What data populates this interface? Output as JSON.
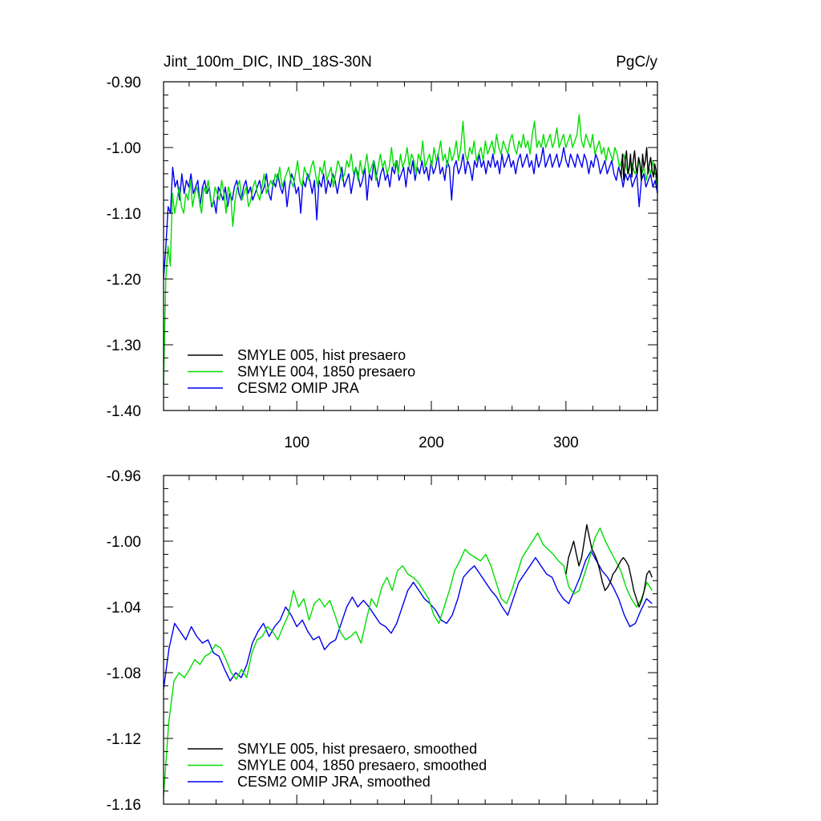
{
  "chart_data": [
    {
      "type": "line",
      "title": "Jint_100m_DIC, IND_18S-30N",
      "units": "PgC/y",
      "xlim": [
        1,
        368
      ],
      "ylim": [
        -1.4,
        -0.9
      ],
      "xticks": [
        100,
        200,
        300
      ],
      "yticks": [
        -1.4,
        -1.3,
        -1.2,
        -1.1,
        -1.0,
        -0.9
      ],
      "ytick_labels": [
        "-1.40",
        "-1.30",
        "-1.20",
        "-1.10",
        "-1.00",
        "-0.90"
      ],
      "xtick_labels": [
        "100",
        "200",
        "300"
      ],
      "series": [
        {
          "name": "SMYLE 005, hist presaero",
          "color": "#000000",
          "x_range": [
            340,
            368
          ],
          "values": [
            -1.035,
            -1.045,
            -1.01,
            -1.05,
            -1.02,
            -1.005,
            -1.04,
            -1.03,
            -1.01,
            -1.045,
            -1.02,
            -1.005,
            -1.03,
            -1.04,
            -1.015,
            -1.025,
            -1.05,
            -1.01,
            -1.03,
            -1.02,
            -1.0,
            -1.04,
            -1.025,
            -1.015,
            -1.035,
            -1.045,
            -1.025,
            -1.035,
            -1.06
          ]
        },
        {
          "name": "SMYLE 004, 1850 presaero",
          "color": "#00dd00",
          "x_range": [
            1,
            368
          ],
          "values": [
            -1.36,
            -1.2,
            -1.15,
            -1.18,
            -1.07,
            -1.1,
            -1.08,
            -1.06,
            -1.09,
            -1.1,
            -1.07,
            -1.08,
            -1.05,
            -1.09,
            -1.07,
            -1.06,
            -1.08,
            -1.1,
            -1.06,
            -1.07,
            -1.05,
            -1.08,
            -1.09,
            -1.06,
            -1.07,
            -1.08,
            -1.05,
            -1.07,
            -1.1,
            -1.06,
            -1.07,
            -1.12,
            -1.08,
            -1.06,
            -1.05,
            -1.08,
            -1.07,
            -1.06,
            -1.09,
            -1.08,
            -1.06,
            -1.05,
            -1.07,
            -1.08,
            -1.06,
            -1.04,
            -1.07,
            -1.06,
            -1.05,
            -1.06,
            -1.04,
            -1.05,
            -1.03,
            -1.06,
            -1.05,
            -1.04,
            -1.03,
            -1.05,
            -1.06,
            -1.04,
            -1.02,
            -1.05,
            -1.06,
            -1.03,
            -1.04,
            -1.05,
            -1.03,
            -1.02,
            -1.04,
            -1.06,
            -1.03,
            -1.04,
            -1.02,
            -1.05,
            -1.04,
            -1.03,
            -1.06,
            -1.04,
            -1.02,
            -1.03,
            -1.05,
            -1.04,
            -1.02,
            -1.03,
            -1.01,
            -1.04,
            -1.03,
            -1.05,
            -1.02,
            -1.04,
            -1.03,
            -1.01,
            -1.04,
            -1.03,
            -1.02,
            -1.05,
            -1.03,
            -1.01,
            -1.03,
            -1.02,
            -1.04,
            -1.03,
            -1.0,
            -1.03,
            -1.02,
            -1.04,
            -1.01,
            -1.03,
            -1.02,
            -1.0,
            -1.03,
            -1.01,
            -1.02,
            -1.04,
            -1.01,
            -1.02,
            -0.99,
            -1.03,
            -1.02,
            -1.01,
            -1.03,
            -1.0,
            -1.02,
            -1.01,
            -0.99,
            -1.02,
            -1.01,
            -1.03,
            -1.0,
            -1.02,
            -1.01,
            -0.99,
            -1.02,
            -1.0,
            -0.96,
            -1.01,
            -1.02,
            -1.0,
            -1.01,
            -0.99,
            -1.02,
            -1.01,
            -1.0,
            -1.02,
            -0.99,
            -1.01,
            -1.0,
            -0.99,
            -1.01,
            -0.98,
            -1.0,
            -1.01,
            -0.99,
            -1.0,
            -1.01,
            -0.99,
            -0.98,
            -1.0,
            -1.01,
            -0.99,
            -1.0,
            -0.98,
            -1.0,
            -0.99,
            -1.01,
            -0.98,
            -0.96,
            -1.0,
            -0.99,
            -1.0,
            -0.98,
            -1.0,
            -0.99,
            -0.98,
            -1.0,
            -0.99,
            -0.97,
            -1.0,
            -0.99,
            -0.98,
            -1.0,
            -0.99,
            -0.98,
            -1.0,
            -0.99,
            -0.98,
            -0.95,
            -0.99,
            -1.0,
            -0.98,
            -0.99,
            -1.0,
            -0.98,
            -1.01,
            -1.0,
            -0.99,
            -1.01,
            -1.0,
            -1.02,
            -1.0,
            -1.01,
            -1.02,
            -1.0,
            -1.01,
            -1.03,
            -1.02,
            -1.01,
            -1.03,
            -1.04,
            -1.02,
            -1.03,
            -1.04,
            -1.03,
            -1.02,
            -1.04,
            -1.03,
            -1.05,
            -1.03,
            -1.04,
            -1.02,
            -1.04,
            -1.06
          ]
        },
        {
          "name": "CESM2 OMIP JRA",
          "color": "#0000ee",
          "x_range": [
            1,
            368
          ],
          "values": [
            -1.2,
            -1.15,
            -1.09,
            -1.1,
            -1.03,
            -1.06,
            -1.05,
            -1.08,
            -1.04,
            -1.07,
            -1.05,
            -1.06,
            -1.04,
            -1.07,
            -1.06,
            -1.05,
            -1.09,
            -1.06,
            -1.05,
            -1.07,
            -1.06,
            -1.09,
            -1.08,
            -1.1,
            -1.06,
            -1.07,
            -1.08,
            -1.06,
            -1.09,
            -1.07,
            -1.08,
            -1.06,
            -1.05,
            -1.07,
            -1.08,
            -1.06,
            -1.05,
            -1.07,
            -1.06,
            -1.08,
            -1.07,
            -1.06,
            -1.05,
            -1.07,
            -1.06,
            -1.04,
            -1.07,
            -1.08,
            -1.05,
            -1.06,
            -1.04,
            -1.06,
            -1.07,
            -1.05,
            -1.09,
            -1.06,
            -1.04,
            -1.05,
            -1.07,
            -1.06,
            -1.1,
            -1.05,
            -1.06,
            -1.04,
            -1.05,
            -1.07,
            -1.05,
            -1.11,
            -1.05,
            -1.06,
            -1.04,
            -1.07,
            -1.05,
            -1.06,
            -1.04,
            -1.05,
            -1.07,
            -1.05,
            -1.03,
            -1.06,
            -1.05,
            -1.04,
            -1.07,
            -1.05,
            -1.03,
            -1.04,
            -1.06,
            -1.05,
            -1.03,
            -1.08,
            -1.04,
            -1.05,
            -1.02,
            -1.04,
            -1.06,
            -1.04,
            -1.03,
            -1.05,
            -1.04,
            -1.06,
            -1.03,
            -1.04,
            -1.02,
            -1.05,
            -1.04,
            -1.03,
            -1.06,
            -1.03,
            -1.04,
            -1.02,
            -1.05,
            -1.03,
            -1.04,
            -1.02,
            -1.04,
            -1.03,
            -1.05,
            -1.02,
            -1.04,
            -1.03,
            -1.01,
            -1.04,
            -1.03,
            -1.05,
            -1.02,
            -1.03,
            -1.08,
            -1.03,
            -1.02,
            -1.04,
            -1.03,
            -1.01,
            -1.04,
            -1.02,
            -1.03,
            -1.05,
            -1.02,
            -1.03,
            -1.01,
            -1.03,
            -1.02,
            -1.04,
            -1.02,
            -1.03,
            -1.01,
            -1.03,
            -1.02,
            -1.04,
            -1.01,
            -1.03,
            -1.02,
            -1.01,
            -1.03,
            -1.02,
            -1.04,
            -1.02,
            -1.01,
            -1.03,
            -1.02,
            -1.01,
            -1.03,
            -1.02,
            -1.04,
            -1.01,
            -1.03,
            -1.02,
            -1.0,
            -1.03,
            -1.02,
            -1.01,
            -1.03,
            -1.02,
            -1.01,
            -1.03,
            -1.02,
            -1.0,
            -1.02,
            -1.03,
            -1.01,
            -1.02,
            -1.03,
            -1.01,
            -1.02,
            -1.03,
            -1.01,
            -1.02,
            -1.04,
            -1.02,
            -1.03,
            -1.01,
            -1.02,
            -1.04,
            -1.03,
            -1.02,
            -1.04,
            -1.03,
            -1.02,
            -1.04,
            -1.05,
            -1.03,
            -1.04,
            -1.06,
            -1.04,
            -1.05,
            -1.04,
            -1.06,
            -1.05,
            -1.04,
            -1.09,
            -1.05,
            -1.04,
            -1.06,
            -1.05,
            -1.04,
            -1.06,
            -1.05,
            -1.07
          ]
        }
      ],
      "legend": [
        "SMYLE 005, hist presaero",
        "SMYLE 004, 1850 presaero",
        "CESM2 OMIP JRA"
      ],
      "legend_position": "bottom-left"
    },
    {
      "type": "line",
      "title": "",
      "units": "",
      "xlim": [
        1,
        368
      ],
      "ylim": [
        -1.16,
        -0.96
      ],
      "xticks": [
        100,
        200,
        300
      ],
      "yticks": [
        -1.16,
        -1.12,
        -1.08,
        -1.04,
        -1.0,
        -0.96
      ],
      "ytick_labels": [
        "-1.16",
        "-1.12",
        "-1.08",
        "-1.04",
        "-1.00",
        "-0.96"
      ],
      "series": [
        {
          "name": "SMYLE 005, hist presaero, smoothed",
          "color": "#000000",
          "x_range": [
            300,
            364
          ],
          "values": [
            -1.02,
            -1.01,
            -1.005,
            -1.0,
            -1.008,
            -1.015,
            -1.01,
            -1.0,
            -0.99,
            -0.998,
            -1.005,
            -1.008,
            -1.012,
            -1.018,
            -1.025,
            -1.03,
            -1.028,
            -1.025,
            -1.02,
            -1.018,
            -1.015,
            -1.012,
            -1.01,
            -1.012,
            -1.015,
            -1.022,
            -1.03,
            -1.035,
            -1.04,
            -1.036,
            -1.03,
            -1.02,
            -1.018,
            -1.022
          ]
        },
        {
          "name": "SMYLE 004, 1850 presaero, smoothed",
          "color": "#00dd00",
          "x_range": [
            1,
            364
          ],
          "values": [
            -1.155,
            -1.11,
            -1.085,
            -1.08,
            -1.083,
            -1.078,
            -1.072,
            -1.075,
            -1.07,
            -1.068,
            -1.063,
            -1.065,
            -1.072,
            -1.08,
            -1.084,
            -1.078,
            -1.083,
            -1.068,
            -1.06,
            -1.058,
            -1.052,
            -1.055,
            -1.06,
            -1.052,
            -1.045,
            -1.03,
            -1.04,
            -1.035,
            -1.048,
            -1.038,
            -1.035,
            -1.04,
            -1.036,
            -1.045,
            -1.055,
            -1.06,
            -1.058,
            -1.055,
            -1.062,
            -1.048,
            -1.035,
            -1.04,
            -1.028,
            -1.022,
            -1.03,
            -1.018,
            -1.015,
            -1.02,
            -1.022,
            -1.025,
            -1.03,
            -1.035,
            -1.045,
            -1.05,
            -1.04,
            -1.03,
            -1.018,
            -1.012,
            -1.005,
            -1.008,
            -1.01,
            -1.012,
            -1.008,
            -1.015,
            -1.025,
            -1.035,
            -1.038,
            -1.03,
            -1.02,
            -1.01,
            -1.005,
            -1.0,
            -0.995,
            -1.002,
            -1.005,
            -1.008,
            -1.012,
            -1.015,
            -1.028,
            -1.032,
            -1.03,
            -1.02,
            -1.01,
            -0.998,
            -0.992,
            -1.0,
            -1.006,
            -1.012,
            -1.018,
            -1.028,
            -1.035,
            -1.04,
            -1.035,
            -1.025,
            -1.03
          ]
        },
        {
          "name": "CESM2 OMIP JRA, smoothed",
          "color": "#0000ee",
          "x_range": [
            1,
            364
          ],
          "values": [
            -1.09,
            -1.065,
            -1.05,
            -1.055,
            -1.06,
            -1.052,
            -1.058,
            -1.062,
            -1.06,
            -1.068,
            -1.07,
            -1.078,
            -1.085,
            -1.08,
            -1.083,
            -1.075,
            -1.062,
            -1.055,
            -1.05,
            -1.058,
            -1.052,
            -1.048,
            -1.04,
            -1.045,
            -1.052,
            -1.048,
            -1.055,
            -1.06,
            -1.058,
            -1.066,
            -1.062,
            -1.06,
            -1.05,
            -1.04,
            -1.034,
            -1.04,
            -1.036,
            -1.04,
            -1.045,
            -1.05,
            -1.052,
            -1.056,
            -1.05,
            -1.04,
            -1.03,
            -1.025,
            -1.03,
            -1.035,
            -1.038,
            -1.042,
            -1.048,
            -1.05,
            -1.045,
            -1.035,
            -1.022,
            -1.018,
            -1.015,
            -1.02,
            -1.025,
            -1.03,
            -1.034,
            -1.04,
            -1.045,
            -1.035,
            -1.025,
            -1.02,
            -1.015,
            -1.01,
            -1.015,
            -1.02,
            -1.022,
            -1.03,
            -1.035,
            -1.038,
            -1.03,
            -1.022,
            -1.012,
            -1.006,
            -1.012,
            -1.018,
            -1.022,
            -1.028,
            -1.035,
            -1.045,
            -1.052,
            -1.05,
            -1.042,
            -1.035,
            -1.038
          ]
        }
      ],
      "legend": [
        "SMYLE 005, hist presaero, smoothed",
        "SMYLE 004, 1850 presaero, smoothed",
        "CESM2 OMIP JRA, smoothed"
      ],
      "legend_position": "bottom-left"
    }
  ]
}
